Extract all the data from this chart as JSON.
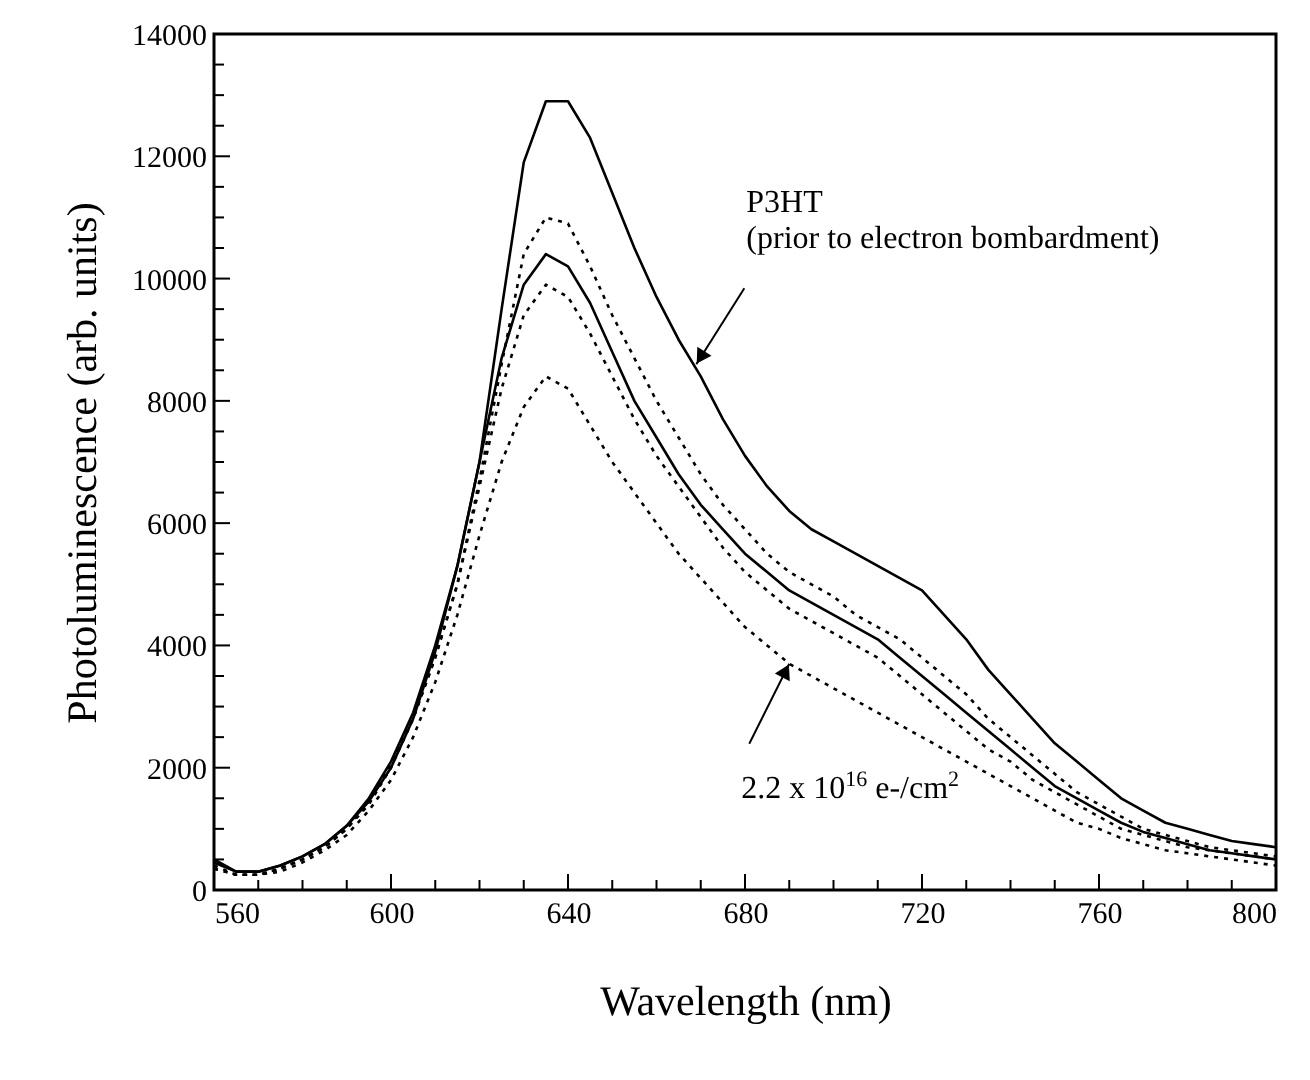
{
  "chart_data": {
    "type": "line",
    "xlabel": "Wavelength (nm)",
    "ylabel": "Photoluminescence (arb. units)",
    "x": [
      560,
      565,
      570,
      575,
      580,
      585,
      590,
      595,
      600,
      605,
      610,
      615,
      620,
      625,
      630,
      635,
      640,
      645,
      650,
      655,
      660,
      665,
      670,
      675,
      680,
      685,
      690,
      695,
      700,
      705,
      710,
      715,
      720,
      725,
      730,
      735,
      740,
      745,
      750,
      755,
      760,
      765,
      770,
      775,
      780,
      785,
      790,
      795,
      800
    ],
    "series": [
      {
        "color": "#000000",
        "line_style": "solid",
        "values": [
          500,
          300,
          300,
          400,
          550,
          750,
          1050,
          1450,
          2000,
          2800,
          3900,
          5300,
          7000,
          9500,
          11900,
          12900,
          12900,
          12300,
          11400,
          10500,
          9700,
          9000,
          8400,
          7700,
          7100,
          6600,
          6200,
          5900,
          5700,
          5500,
          5300,
          5100,
          4900,
          4500,
          4100,
          3600,
          3200,
          2800,
          2400,
          2100,
          1800,
          1500,
          1300,
          1100,
          1000,
          900,
          800,
          750,
          700
        ]
      },
      {
        "color": "#000000",
        "line_style": "dotted",
        "values": [
          400,
          250,
          250,
          350,
          500,
          700,
          1000,
          1450,
          2050,
          2800,
          3800,
          5000,
          6700,
          8600,
          10400,
          11000,
          10900,
          10200,
          9400,
          8700,
          8000,
          7400,
          6800,
          6300,
          5900,
          5500,
          5200,
          5000,
          4800,
          4500,
          4300,
          4100,
          3800,
          3500,
          3200,
          2800,
          2500,
          2200,
          1900,
          1600,
          1400,
          1200,
          1000,
          900,
          800,
          700,
          650,
          600,
          550
        ]
      },
      {
        "color": "#000000",
        "line_style": "solid",
        "values": [
          450,
          300,
          300,
          400,
          550,
          750,
          1050,
          1500,
          2100,
          2900,
          4000,
          5300,
          7000,
          8700,
          9900,
          10400,
          10200,
          9600,
          8800,
          8000,
          7400,
          6800,
          6300,
          5900,
          5500,
          5200,
          4900,
          4700,
          4500,
          4300,
          4100,
          3800,
          3500,
          3200,
          2900,
          2600,
          2300,
          2000,
          1700,
          1500,
          1300,
          1100,
          950,
          850,
          750,
          650,
          600,
          550,
          500
        ]
      },
      {
        "color": "#000000",
        "line_style": "dotted",
        "values": [
          350,
          250,
          250,
          350,
          500,
          700,
          1000,
          1400,
          2000,
          2800,
          3800,
          5000,
          6600,
          8200,
          9400,
          9900,
          9700,
          9100,
          8400,
          7700,
          7100,
          6600,
          6100,
          5600,
          5200,
          4900,
          4600,
          4400,
          4200,
          4000,
          3800,
          3500,
          3200,
          2900,
          2600,
          2300,
          2100,
          1800,
          1600,
          1400,
          1200,
          1000,
          900,
          800,
          700,
          650,
          600,
          550,
          500
        ]
      },
      {
        "color": "#000000",
        "line_style": "dotted",
        "values": [
          350,
          250,
          250,
          300,
          450,
          650,
          900,
          1300,
          1800,
          2500,
          3400,
          4500,
          5800,
          7000,
          7900,
          8400,
          8200,
          7600,
          7000,
          6500,
          6000,
          5500,
          5100,
          4700,
          4300,
          4000,
          3700,
          3500,
          3300,
          3100,
          2900,
          2700,
          2500,
          2300,
          2100,
          1900,
          1700,
          1500,
          1300,
          1100,
          1000,
          850,
          750,
          650,
          600,
          550,
          500,
          450,
          400
        ]
      }
    ],
    "xlim": [
      560,
      800
    ],
    "xticks": [
      560,
      {
        "value": 570,
        "label": null
      },
      {
        "value": 580,
        "label": null
      },
      {
        "value": 590,
        "label": null
      },
      600,
      {
        "value": 610,
        "label": null
      },
      {
        "value": 620,
        "label": null
      },
      {
        "value": 630,
        "label": null
      },
      640,
      {
        "value": 650,
        "label": null
      },
      {
        "value": 660,
        "label": null
      },
      {
        "value": 670,
        "label": null
      },
      680,
      {
        "value": 690,
        "label": null
      },
      {
        "value": 700,
        "label": null
      },
      {
        "value": 710,
        "label": null
      },
      720,
      {
        "value": 730,
        "label": null
      },
      {
        "value": 740,
        "label": null
      },
      {
        "value": 750,
        "label": null
      },
      760,
      {
        "value": 770,
        "label": null
      },
      {
        "value": 780,
        "label": null
      },
      {
        "value": 790,
        "label": null
      },
      800
    ],
    "ylim": [
      0,
      14000
    ],
    "yticks": [
      0,
      {
        "value": 500,
        "label": null
      },
      {
        "value": 1000,
        "label": null
      },
      {
        "value": 1500,
        "label": null
      },
      2000,
      {
        "value": 2500,
        "label": null
      },
      {
        "value": 3000,
        "label": null
      },
      {
        "value": 3500,
        "label": null
      },
      4000,
      {
        "value": 4500,
        "label": null
      },
      {
        "value": 5000,
        "label": null
      },
      {
        "value": 5500,
        "label": null
      },
      6000,
      {
        "value": 6500,
        "label": null
      },
      {
        "value": 7000,
        "label": null
      },
      {
        "value": 7500,
        "label": null
      },
      8000,
      {
        "value": 8500,
        "label": null
      },
      {
        "value": 9000,
        "label": null
      },
      {
        "value": 9500,
        "label": null
      },
      10000,
      {
        "value": 10500,
        "label": null
      },
      {
        "value": 11000,
        "label": null
      },
      {
        "value": 11500,
        "label": null
      },
      12000,
      {
        "value": 12500,
        "label": null
      },
      {
        "value": 13000,
        "label": null
      },
      {
        "value": 13500,
        "label": null
      },
      14000
    ],
    "annotations": [
      {
        "text": "P3HT\n(prior to electron bombardment)",
        "x": 669,
        "y": 8600
      },
      {
        "text": "2.2 x 10$^{16}$ e-/cm$^{2}$",
        "x": 690,
        "y": 3700
      }
    ]
  }
}
